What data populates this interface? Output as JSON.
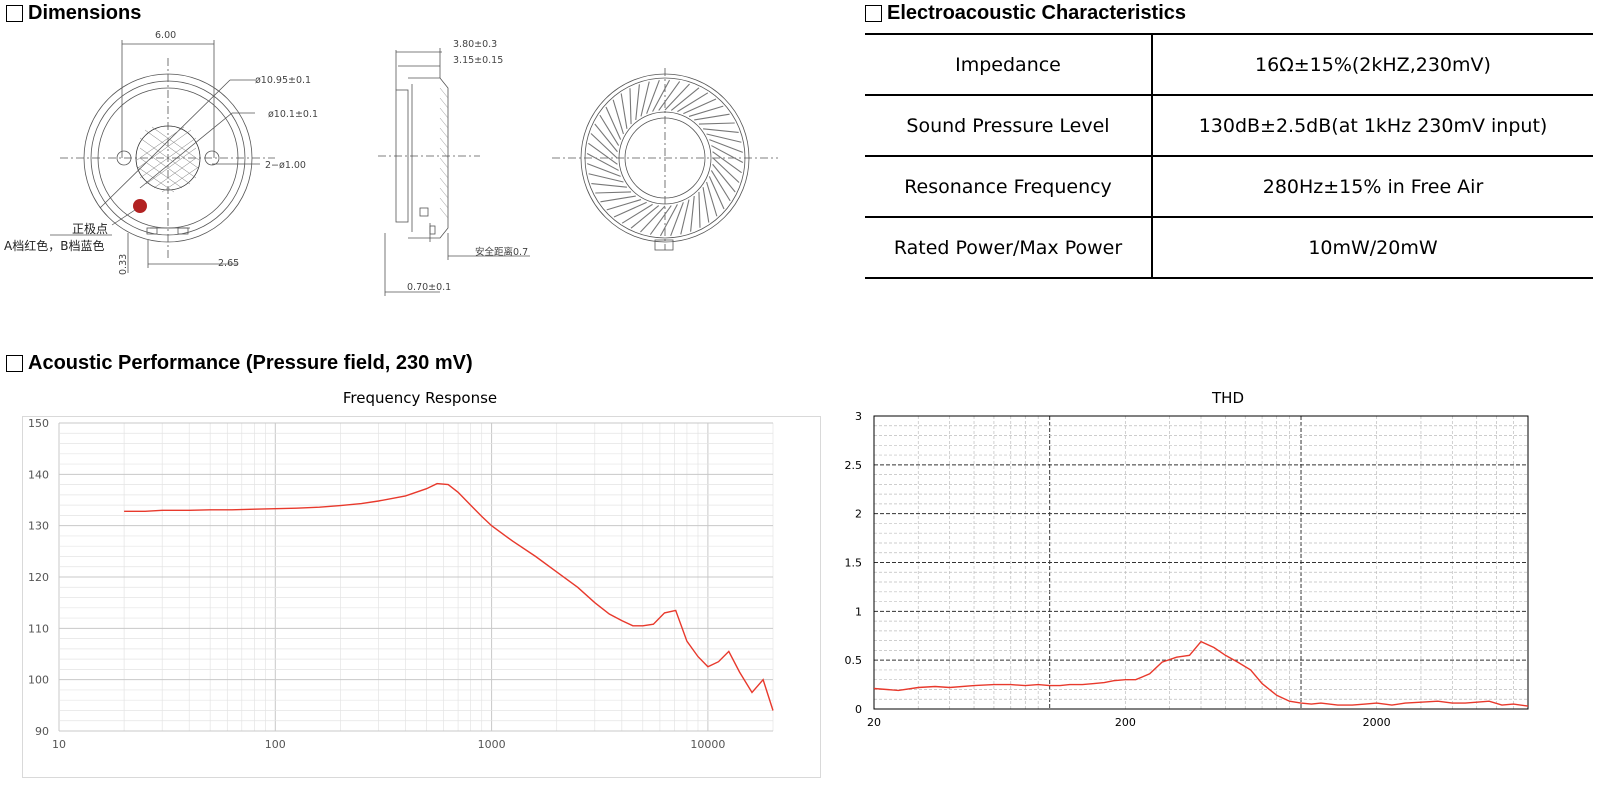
{
  "sections": {
    "dimensions": "Dimensions",
    "electroacoustic": "Electroacoustic Characteristics",
    "acoustic": "Acoustic Performance (Pressure field, 230 mV)"
  },
  "drawing": {
    "dim_width_top": "6.00",
    "dia_outer": "ø10.95±0.1",
    "dia_inner": "ø10.1±0.1",
    "holes": "2−ø1.00",
    "positive_label": "正极点",
    "color_note": "A档红色，B档蓝色",
    "dim_033": "0.33",
    "dim_265": "2.65",
    "side_dim_1": "3.80±0.3",
    "side_dim_2": "3.15±0.15",
    "side_dim_3": "安全距离0.7",
    "side_dim_4": "0.70±0.1",
    "accent_red": "#b22222"
  },
  "electroacoustic": {
    "rows": [
      {
        "param": "Impedance",
        "value": "16Ω±15%(2kHZ,230mV)"
      },
      {
        "param": "Sound Pressure Level",
        "value": "130dB±2.5dB(at 1kHz 230mV input)"
      },
      {
        "param": "Resonance Frequency",
        "value": "280Hz±15% in Free Air"
      },
      {
        "param": "Rated Power/Max Power",
        "value": "10mW/20mW"
      }
    ]
  },
  "chart_data": [
    {
      "type": "line",
      "title": "Frequency Response",
      "x_scale": "log",
      "xlim": [
        10,
        20000
      ],
      "ylim": [
        90,
        150
      ],
      "xticks": [
        "10",
        "100",
        "1000",
        "10000"
      ],
      "yticks": [
        "90",
        "100",
        "110",
        "120",
        "130",
        "140",
        "150"
      ],
      "grid": true,
      "color": "#e8392c",
      "x": [
        20,
        25,
        30,
        40,
        50,
        63,
        80,
        100,
        125,
        160,
        200,
        250,
        300,
        400,
        500,
        560,
        630,
        700,
        800,
        900,
        1000,
        1250,
        1600,
        2000,
        2500,
        3000,
        3500,
        4000,
        4500,
        5000,
        5600,
        6300,
        7100,
        8000,
        9000,
        10000,
        11200,
        12500,
        14000,
        16000,
        18000,
        20000
      ],
      "y": [
        132.8,
        132.8,
        133.0,
        133.0,
        133.1,
        133.1,
        133.2,
        133.3,
        133.4,
        133.6,
        133.9,
        134.3,
        134.8,
        135.8,
        137.2,
        138.2,
        138.0,
        136.5,
        134.0,
        131.8,
        130.0,
        127.0,
        124.0,
        121.0,
        118.0,
        115.0,
        112.8,
        111.5,
        110.5,
        110.5,
        110.8,
        113.0,
        113.5,
        107.5,
        104.5,
        102.5,
        103.5,
        105.5,
        101.5,
        97.5,
        100.0,
        94.0
      ]
    },
    {
      "type": "line",
      "title": "THD",
      "x_scale": "log",
      "xlim": [
        20,
        8000
      ],
      "ylim": [
        0,
        3
      ],
      "xticks": [
        "20",
        "200",
        "2000"
      ],
      "yticks": [
        "0",
        "0.5",
        "1",
        "1.5",
        "2",
        "2.5",
        "3"
      ],
      "grid": true,
      "color": "#e8392c",
      "x": [
        20,
        25,
        30,
        35,
        40,
        50,
        60,
        70,
        80,
        90,
        100,
        110,
        120,
        135,
        150,
        165,
        180,
        200,
        220,
        250,
        280,
        320,
        360,
        400,
        450,
        500,
        560,
        630,
        700,
        800,
        900,
        1000,
        1100,
        1200,
        1400,
        1600,
        1800,
        2000,
        2300,
        2600,
        3000,
        3500,
        4000,
        4500,
        5000,
        5600,
        6300,
        7000,
        8000
      ],
      "y": [
        0.21,
        0.19,
        0.22,
        0.23,
        0.22,
        0.24,
        0.25,
        0.25,
        0.24,
        0.25,
        0.24,
        0.24,
        0.25,
        0.25,
        0.26,
        0.27,
        0.29,
        0.3,
        0.3,
        0.36,
        0.48,
        0.53,
        0.55,
        0.69,
        0.63,
        0.55,
        0.48,
        0.4,
        0.26,
        0.14,
        0.08,
        0.06,
        0.05,
        0.06,
        0.04,
        0.04,
        0.05,
        0.06,
        0.04,
        0.06,
        0.07,
        0.08,
        0.06,
        0.06,
        0.07,
        0.08,
        0.04,
        0.05,
        0.03
      ]
    }
  ]
}
